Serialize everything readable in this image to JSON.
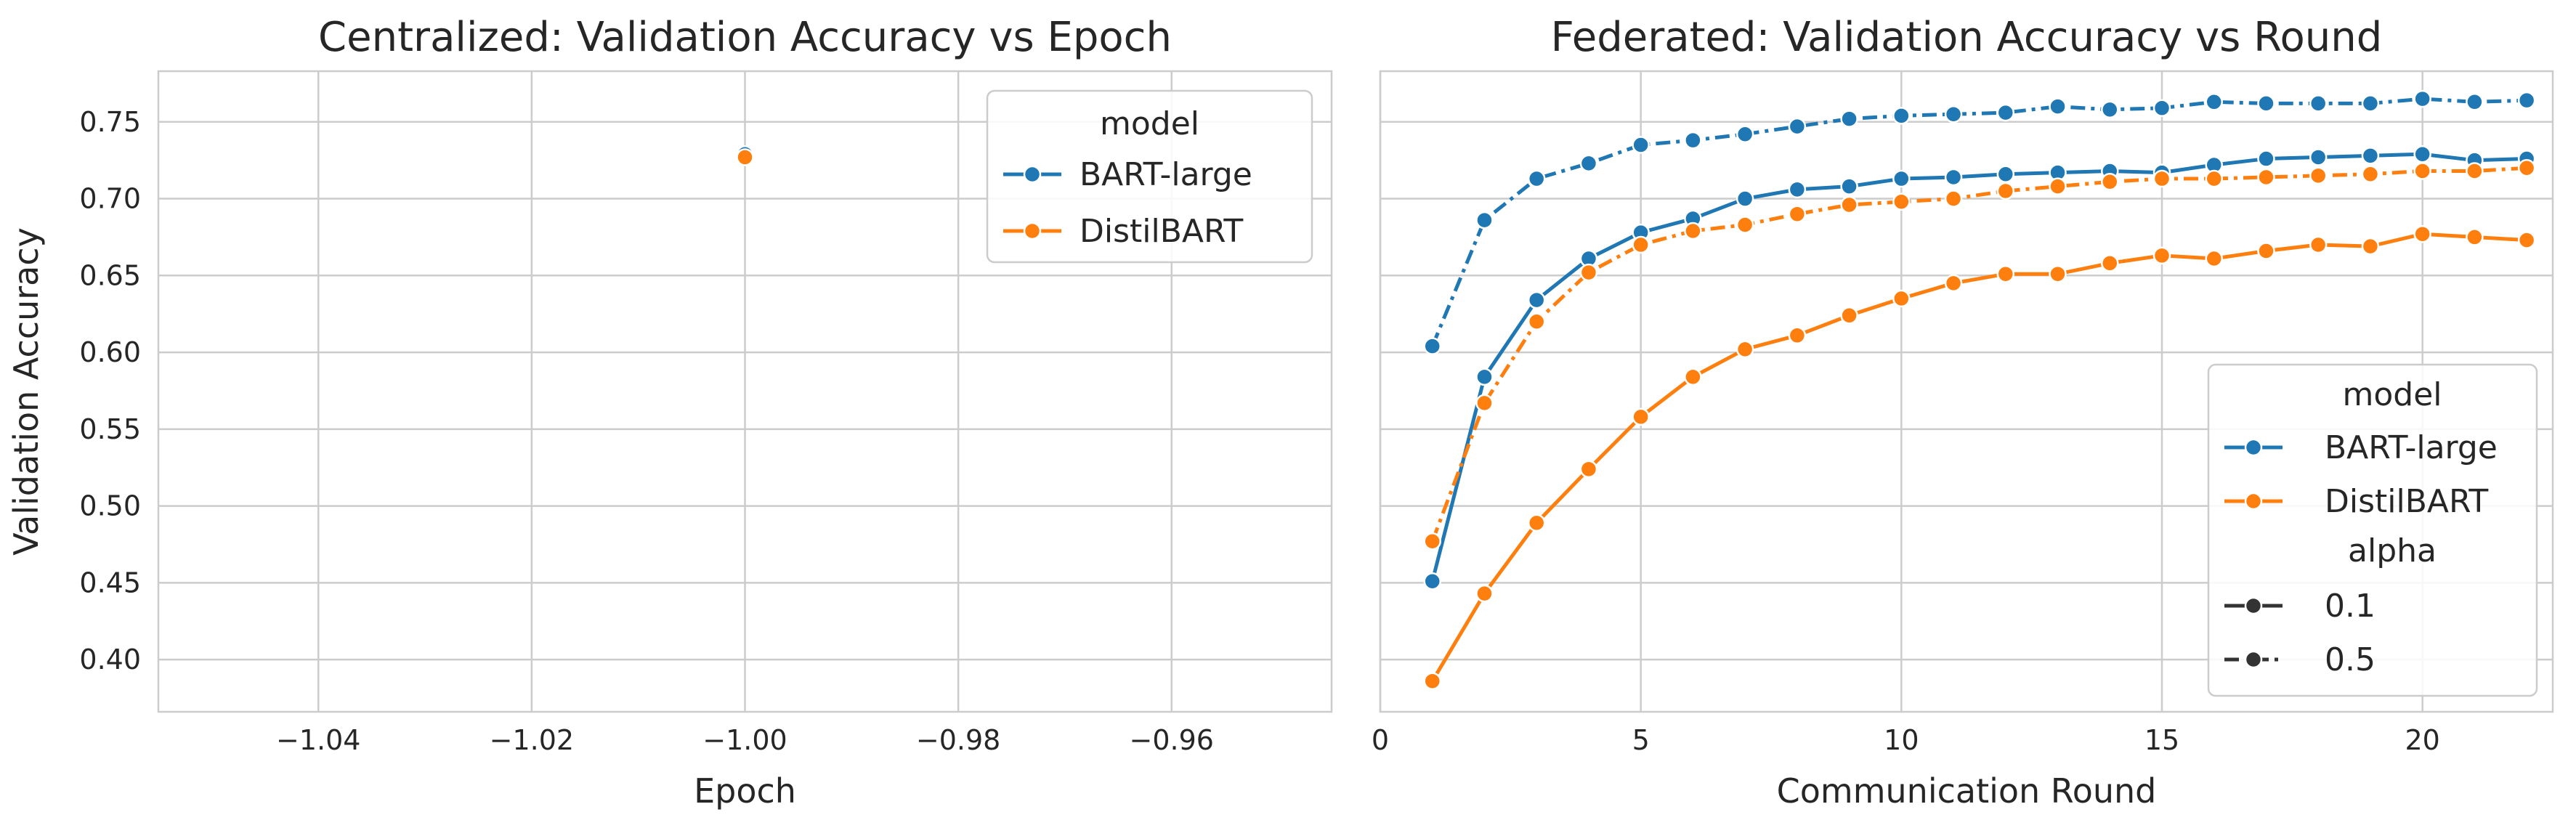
{
  "colors": {
    "bart_large": "#1f77b4",
    "distilbart": "#ff7f0e",
    "grid": "#cccccc",
    "text": "#262626",
    "legend_line": "#333333"
  },
  "chart_data": [
    {
      "type": "scatter",
      "title": "Centralized: Validation Accuracy vs Epoch",
      "xlabel": "Epoch",
      "ylabel": "Validation Accuracy",
      "xlim": [
        -1.055,
        -0.945
      ],
      "ylim": [
        0.366,
        0.783
      ],
      "xticks": [
        -1.04,
        -1.02,
        -1.0,
        -0.98,
        -0.96
      ],
      "xtick_labels": [
        "−1.04",
        "−1.02",
        "−1.00",
        "−0.98",
        "−0.96"
      ],
      "yticks": [
        0.4,
        0.45,
        0.5,
        0.55,
        0.6,
        0.65,
        0.7,
        0.75
      ],
      "ytick_labels": [
        "0.40",
        "0.45",
        "0.50",
        "0.55",
        "0.60",
        "0.65",
        "0.70",
        "0.75"
      ],
      "grid": true,
      "legend": {
        "position": "top-right",
        "title": "model",
        "entries": [
          "BART-large",
          "DistilBART"
        ]
      },
      "series": [
        {
          "name": "BART-large",
          "x": [
            -1.0
          ],
          "y": [
            0.729
          ]
        },
        {
          "name": "DistilBART",
          "x": [
            -1.0
          ],
          "y": [
            0.727
          ]
        }
      ]
    },
    {
      "type": "line",
      "title": "Federated: Validation Accuracy vs Round",
      "xlabel": "Communication Round",
      "ylabel": "",
      "xlim": [
        0,
        22.5
      ],
      "ylim": [
        0.366,
        0.783
      ],
      "xticks": [
        0,
        5,
        10,
        15,
        20
      ],
      "xtick_labels": [
        "0",
        "5",
        "10",
        "15",
        "20"
      ],
      "grid": true,
      "legend": {
        "position": "lower-right",
        "title": "model",
        "entries": [
          "BART-large",
          "DistilBART"
        ],
        "style_title": "alpha",
        "style_entries": [
          "0.1",
          "0.5"
        ]
      },
      "x": [
        1,
        2,
        3,
        4,
        5,
        6,
        7,
        8,
        9,
        10,
        11,
        12,
        13,
        14,
        15,
        16,
        17,
        18,
        19,
        20,
        21,
        22
      ],
      "series": [
        {
          "name": "BART-large",
          "alpha": "0.1",
          "dash": "solid",
          "values": [
            0.451,
            0.584,
            0.634,
            0.661,
            0.678,
            0.687,
            0.7,
            0.706,
            0.708,
            0.713,
            0.714,
            0.716,
            0.717,
            0.718,
            0.717,
            0.722,
            0.726,
            0.727,
            0.728,
            0.729,
            0.725,
            0.726
          ]
        },
        {
          "name": "BART-large",
          "alpha": "0.5",
          "dash": "dashdot",
          "values": [
            0.604,
            0.686,
            0.713,
            0.723,
            0.735,
            0.738,
            0.742,
            0.747,
            0.752,
            0.754,
            0.755,
            0.756,
            0.76,
            0.758,
            0.759,
            0.763,
            0.762,
            0.762,
            0.762,
            0.765,
            0.763,
            0.764
          ]
        },
        {
          "name": "DistilBART",
          "alpha": "0.1",
          "dash": "solid",
          "values": [
            0.386,
            0.443,
            0.489,
            0.524,
            0.558,
            0.584,
            0.602,
            0.611,
            0.624,
            0.635,
            0.645,
            0.651,
            0.651,
            0.658,
            0.663,
            0.661,
            0.666,
            0.67,
            0.669,
            0.677,
            0.675,
            0.673
          ]
        },
        {
          "name": "DistilBART",
          "alpha": "0.5",
          "dash": "dashdot",
          "values": [
            0.477,
            0.567,
            0.62,
            0.652,
            0.67,
            0.679,
            0.683,
            0.69,
            0.696,
            0.698,
            0.7,
            0.705,
            0.708,
            0.711,
            0.713,
            0.713,
            0.714,
            0.715,
            0.716,
            0.718,
            0.718,
            0.72
          ]
        }
      ]
    }
  ]
}
